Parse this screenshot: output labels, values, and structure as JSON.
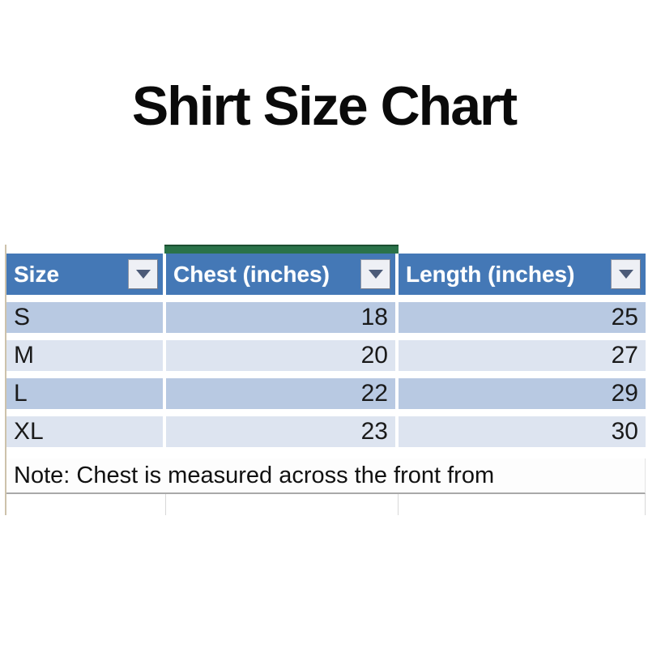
{
  "title": "Shirt Size Chart",
  "table": {
    "columns": [
      {
        "label": "Size"
      },
      {
        "label": "Chest (inches)"
      },
      {
        "label": "Length (inches)"
      }
    ],
    "rows": [
      {
        "size": "S",
        "chest": "18",
        "length": "25"
      },
      {
        "size": "M",
        "chest": "20",
        "length": "27"
      },
      {
        "size": "L",
        "chest": "22",
        "length": "29"
      },
      {
        "size": "XL",
        "chest": "23",
        "length": "30"
      }
    ],
    "note": "Note: Chest is measured across the front from"
  },
  "icons": {
    "filter_dropdown": "chevron-down-icon",
    "table_corner_handle": "resize-handle-icon"
  },
  "colors": {
    "header_bg": "#4478b6",
    "header_text": "#ffffff",
    "selection_green": "#2a7249",
    "selection_green_dark": "#1c4f31",
    "band_dark": "#b8c9e2",
    "band_light": "#dde4f0",
    "cell_text": "#1a1a1a",
    "note_border": "#a9a9a9",
    "grid_line": "#d8d8d8",
    "sheet_edge": "#cdc2ab",
    "handle_blue": "#45517d",
    "filter_btn_bg": "#eef0f5",
    "filter_btn_border": "#8f96a5",
    "filter_arrow": "#4c5b78"
  },
  "chart_data": {
    "type": "table",
    "title": "Shirt Size Chart",
    "columns": [
      "Size",
      "Chest (inches)",
      "Length (inches)"
    ],
    "rows": [
      [
        "S",
        18,
        25
      ],
      [
        "M",
        20,
        27
      ],
      [
        "L",
        22,
        29
      ],
      [
        "XL",
        23,
        30
      ]
    ],
    "note": "Note: Chest is measured across the front from"
  }
}
